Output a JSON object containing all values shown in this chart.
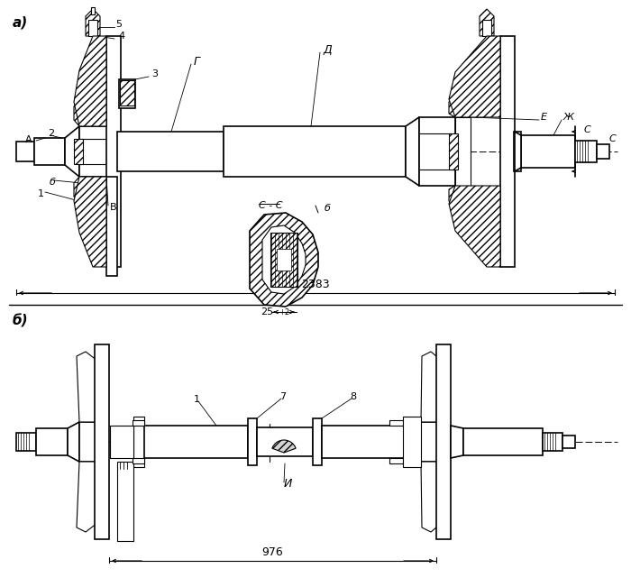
{
  "bg_color": "#ffffff",
  "line_color": "#000000",
  "figsize": [
    7.0,
    6.51
  ],
  "dpi": 100,
  "title_a": "а)",
  "title_b": "б)",
  "label_5": "5",
  "label_4": "4",
  "label_3": "3",
  "label_G": "Г",
  "label_D": "Д",
  "label_E": "Е",
  "label_Zh": "Ж",
  "label_A": "А",
  "label_2": "2",
  "label_b1": "б",
  "label_1": "1",
  "label_B": "В",
  "label_b2": "б",
  "label_C1": "С",
  "label_C2": "С",
  "label_CS": "С - С",
  "label_25": "25",
  "label_25sup": "+2",
  "label_2383": "2383",
  "label_1b": "1",
  "label_7": "7",
  "label_8": "8",
  "label_I": "И",
  "label_976": "976"
}
